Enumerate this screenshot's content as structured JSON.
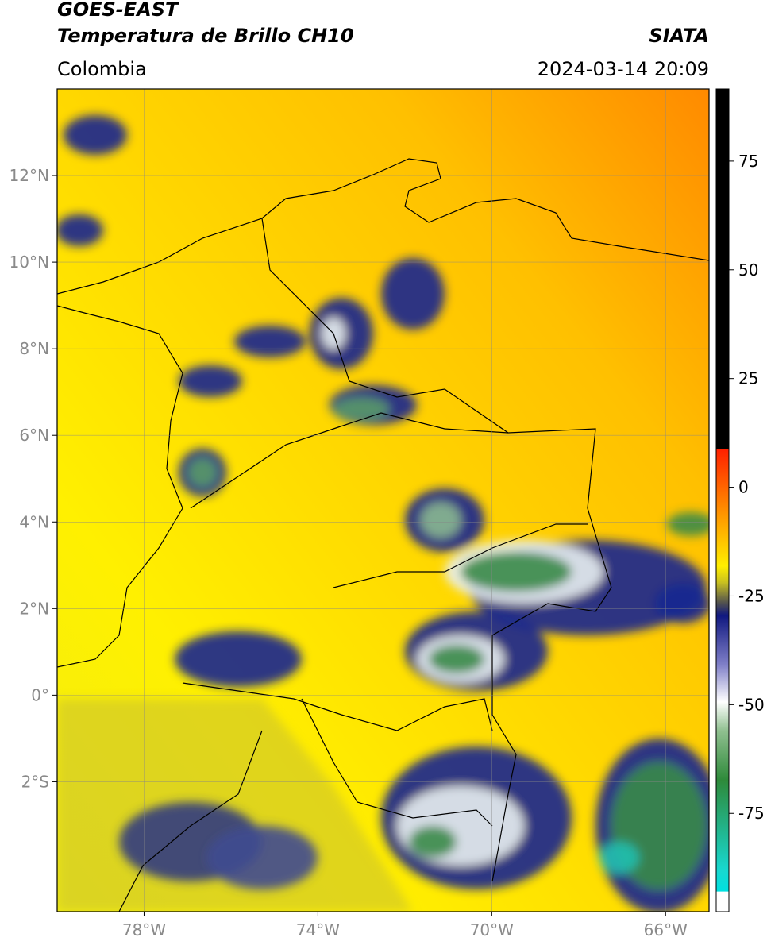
{
  "header": {
    "title": "GOES-EAST",
    "subtitle": "Temperatura de Brillo CH10",
    "region": "Colombia",
    "source": "SIATA",
    "datetime": "2024-03-14 20:09"
  },
  "map": {
    "lonlim": [
      -80,
      -65
    ],
    "latlim": [
      -5,
      14
    ],
    "lon_ticks": [
      {
        "value": -78,
        "label": "78°W"
      },
      {
        "value": -74,
        "label": "74°W"
      },
      {
        "value": -70,
        "label": "70°W"
      },
      {
        "value": -66,
        "label": "66°W"
      }
    ],
    "lat_ticks": [
      {
        "value": 12,
        "label": "12°N"
      },
      {
        "value": 10,
        "label": "10°N"
      },
      {
        "value": 8,
        "label": "8°N"
      },
      {
        "value": 6,
        "label": "6°N"
      },
      {
        "value": 4,
        "label": "4°N"
      },
      {
        "value": 2,
        "label": "2°N"
      },
      {
        "value": 0,
        "label": "0°"
      },
      {
        "value": -2,
        "label": "2°S"
      }
    ]
  },
  "colorbar": {
    "vlim": [
      -97.6,
      91.6
    ],
    "ticks": [
      75,
      50,
      25,
      0,
      -25,
      -50,
      -75
    ]
  }
}
